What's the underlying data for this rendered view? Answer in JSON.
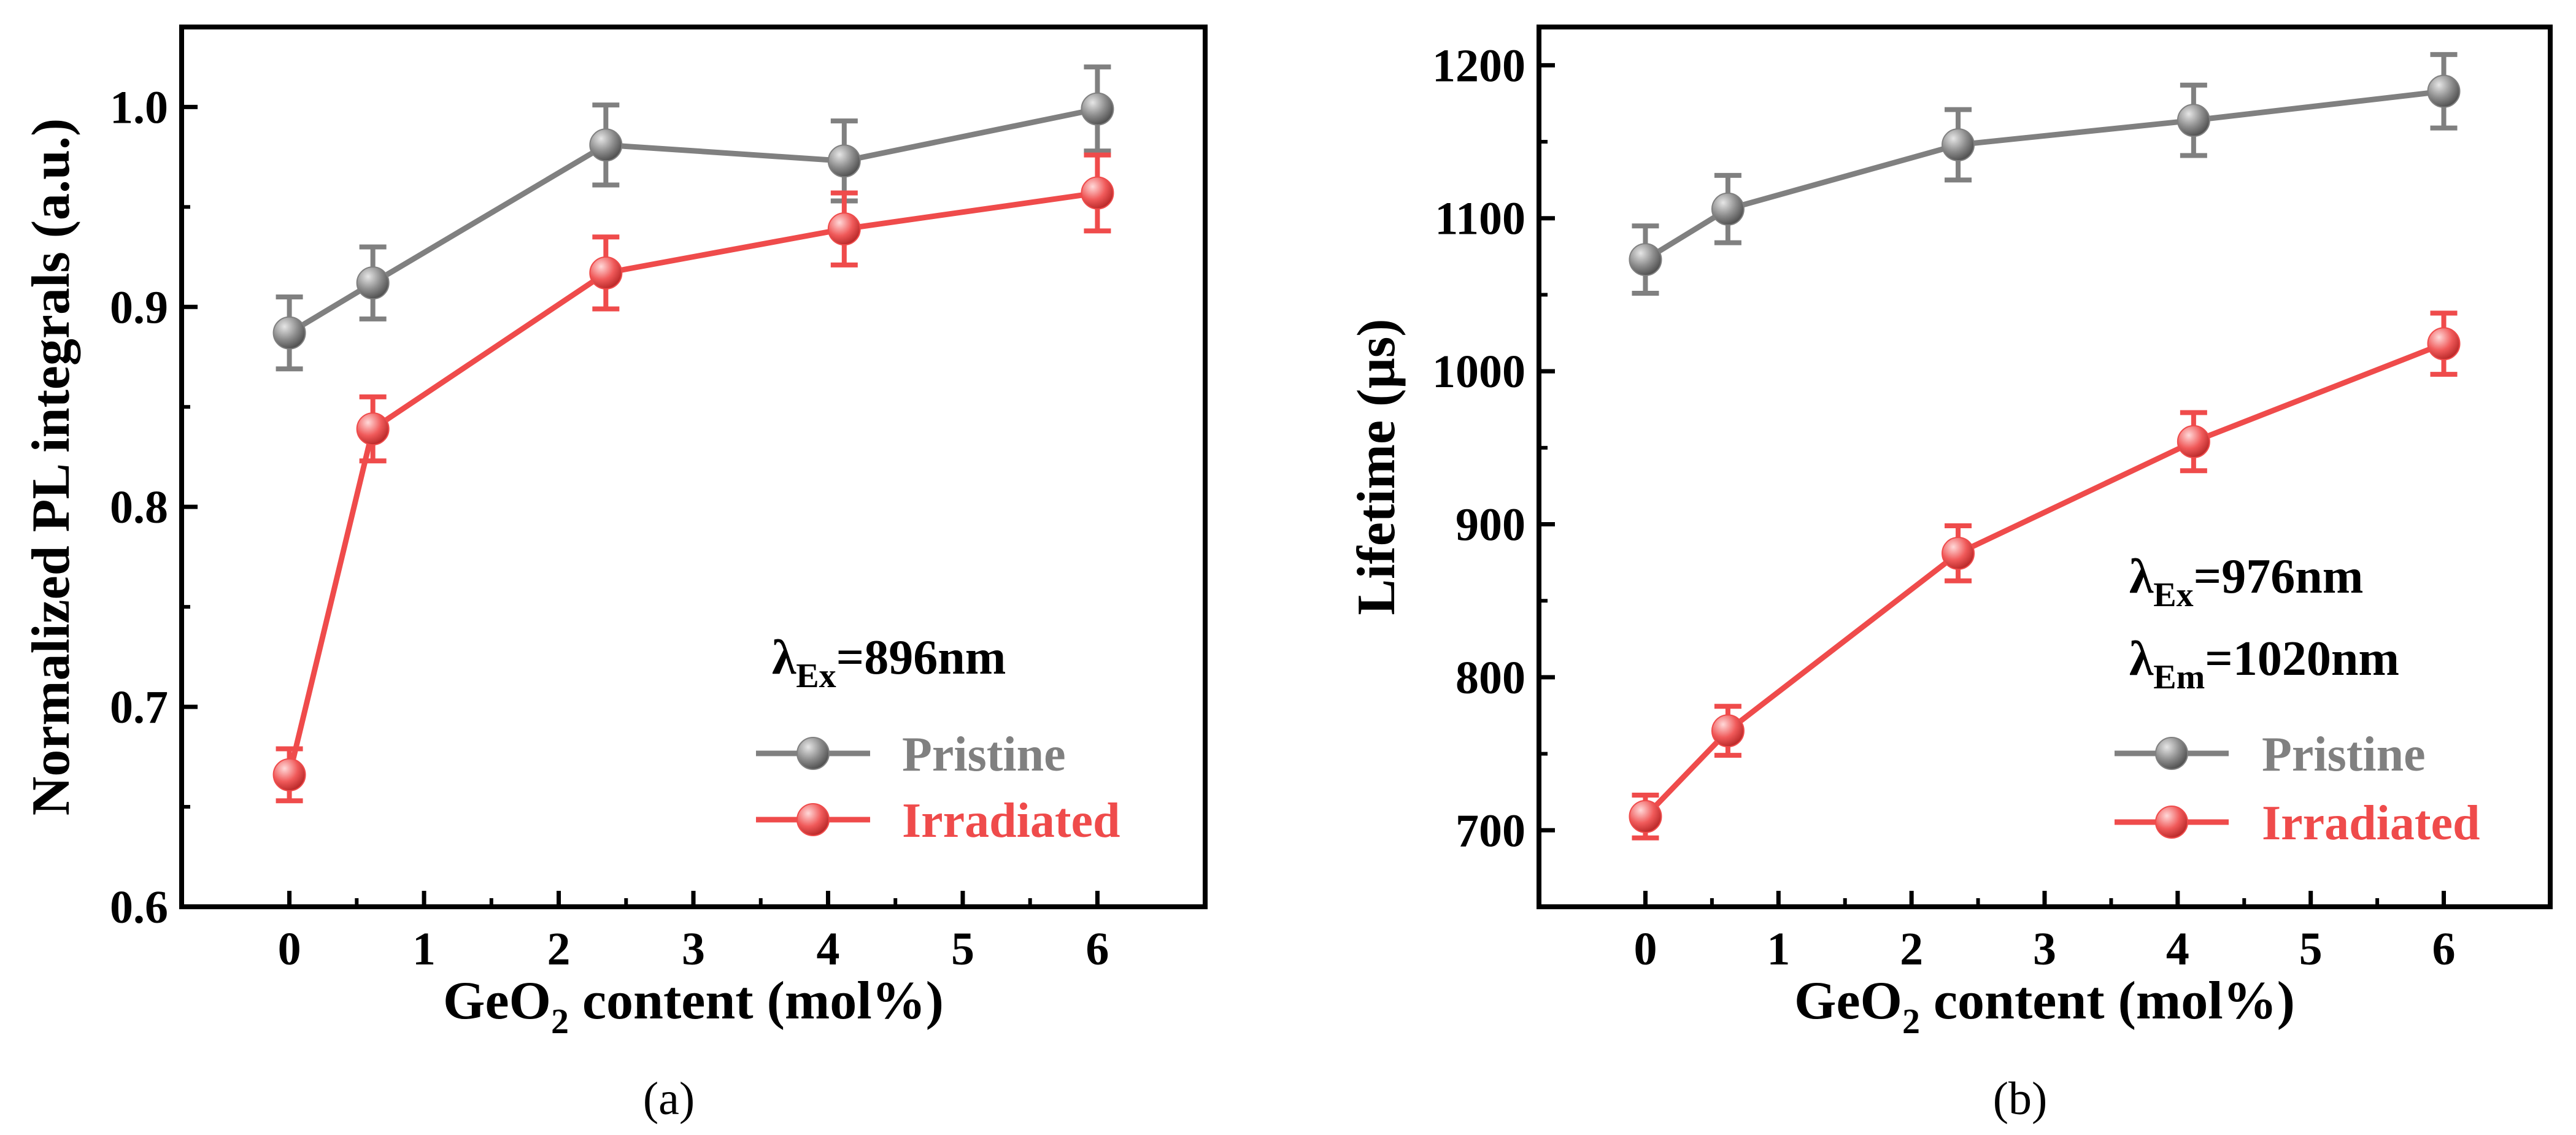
{
  "colors": {
    "pristine": "#808080",
    "irradiated": "#ef4b4b",
    "axis": "#000000"
  },
  "chart_data": [
    {
      "type": "line",
      "panel_label": "(a)",
      "xlabel_parts": [
        "GeO",
        "2",
        " content (mol%)"
      ],
      "ylabel": "Normalized PL integrals (a.u.)",
      "xlim": [
        -0.8,
        6.8
      ],
      "ylim": [
        0.6,
        1.04
      ],
      "xticks": [
        0,
        1,
        2,
        3,
        4,
        5,
        6
      ],
      "yticks": [
        0.6,
        0.7,
        0.8,
        0.9,
        1.0
      ],
      "ytick_labels": [
        "0.6",
        "0.7",
        "0.8",
        "0.9",
        "1.0"
      ],
      "annotations": [
        {
          "main": "λ",
          "sub": "Ex",
          "rest": "=896nm"
        }
      ],
      "legend_labels": [
        "Pristine",
        "Irradiated"
      ],
      "series": [
        {
          "name": "Pristine",
          "color_key": "pristine",
          "x": [
            0,
            0.62,
            2.35,
            4.12,
            6.0
          ],
          "y": [
            0.887,
            0.912,
            0.981,
            0.973,
            0.999
          ],
          "err": [
            0.018,
            0.018,
            0.02,
            0.02,
            0.021
          ]
        },
        {
          "name": "Irradiated",
          "color_key": "irradiated",
          "x": [
            0,
            0.62,
            2.35,
            4.12,
            6.0
          ],
          "y": [
            0.666,
            0.839,
            0.917,
            0.939,
            0.957
          ],
          "err": [
            0.013,
            0.016,
            0.018,
            0.018,
            0.019
          ]
        }
      ]
    },
    {
      "type": "line",
      "panel_label": "(b)",
      "xlabel_parts": [
        "GeO",
        "2",
        " content (mol%)"
      ],
      "ylabel": "Lifetime (µs)",
      "xlim": [
        -0.8,
        6.8
      ],
      "ylim": [
        650,
        1225
      ],
      "xticks": [
        0,
        1,
        2,
        3,
        4,
        5,
        6
      ],
      "yticks": [
        700,
        800,
        900,
        1000,
        1100,
        1200
      ],
      "ytick_labels": [
        "700",
        "800",
        "900",
        "1000",
        "1100",
        "1200"
      ],
      "annotations": [
        {
          "main": "λ",
          "sub": "Ex",
          "rest": "=976nm"
        },
        {
          "main": "λ",
          "sub": "Em",
          "rest": "=1020nm"
        }
      ],
      "legend_labels": [
        "Pristine",
        "Irradiated"
      ],
      "series": [
        {
          "name": "Pristine",
          "color_key": "pristine",
          "x": [
            0,
            0.62,
            2.35,
            4.12,
            6.0
          ],
          "y": [
            1073,
            1106,
            1148,
            1164,
            1183
          ],
          "err": [
            22,
            22,
            23,
            23,
            24
          ]
        },
        {
          "name": "Irradiated",
          "color_key": "irradiated",
          "x": [
            0,
            0.62,
            2.35,
            4.12,
            6.0
          ],
          "y": [
            709,
            765,
            881,
            954,
            1018
          ],
          "err": [
            14,
            16,
            18,
            19,
            20
          ]
        }
      ]
    }
  ]
}
